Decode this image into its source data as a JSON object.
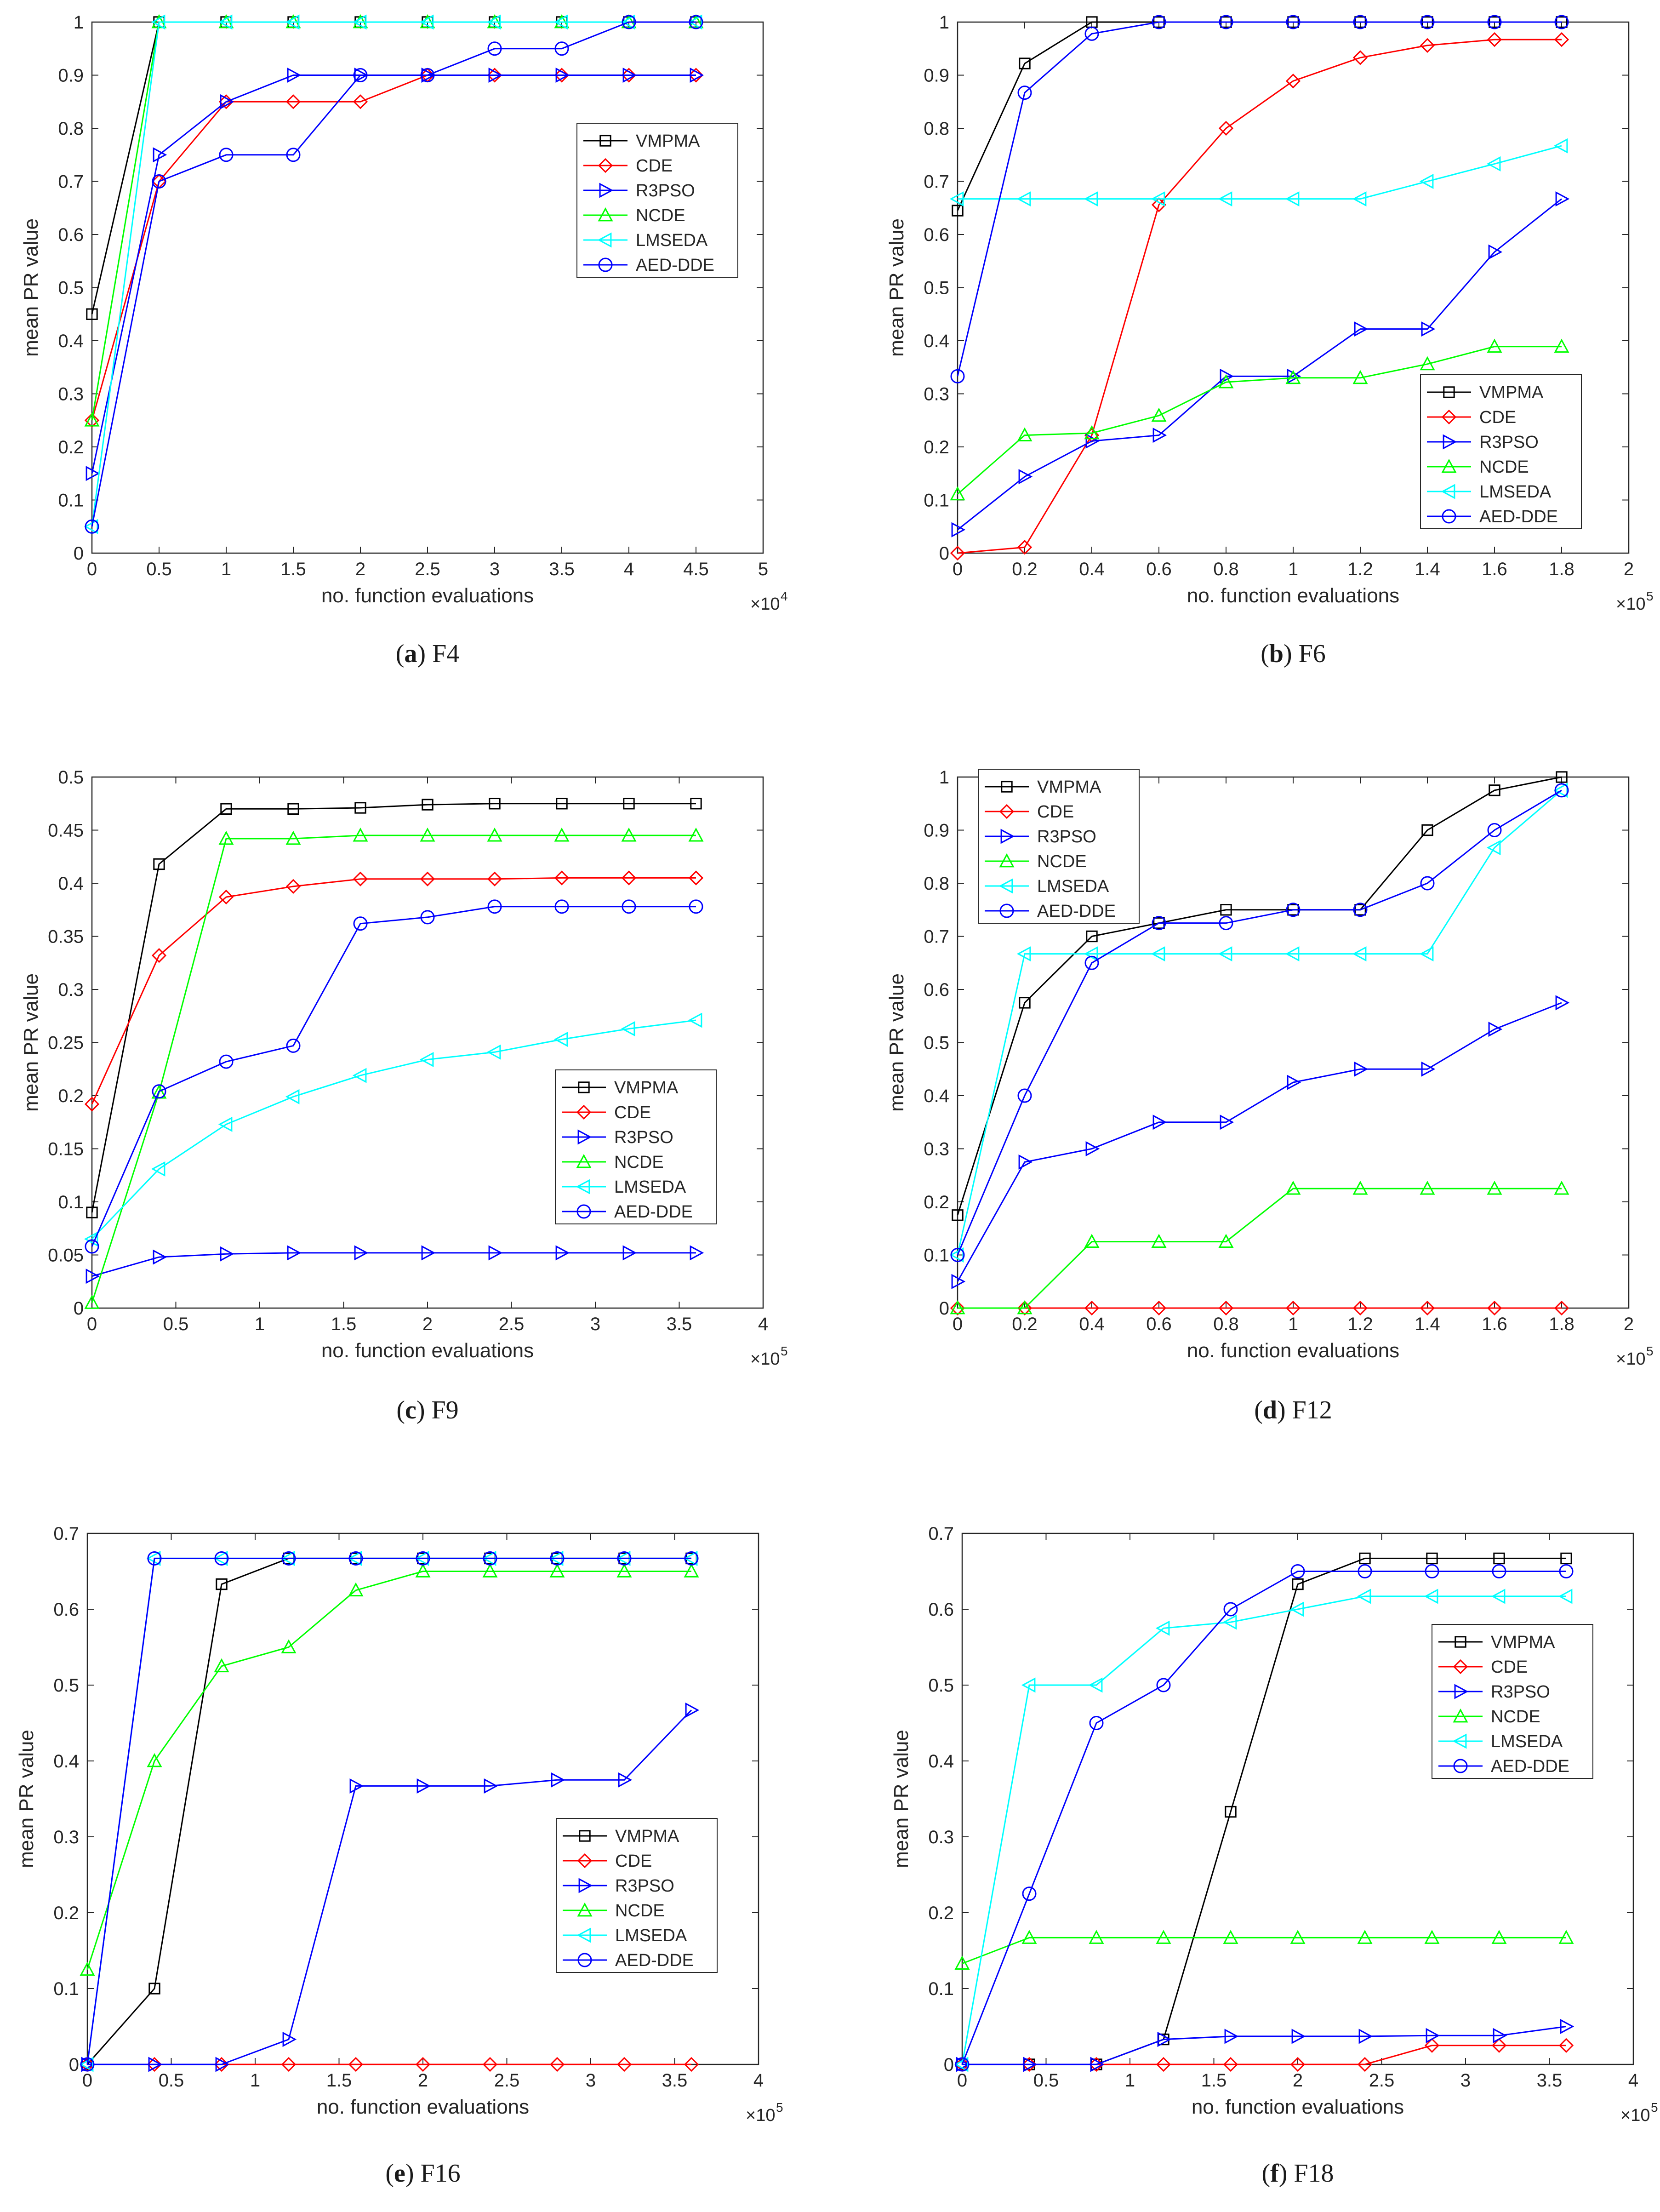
{
  "colors": {
    "VMPMA": "#000000",
    "CDE": "#ff0000",
    "R3PSO": "#0000ff",
    "NCDE": "#00ff00",
    "LMSEDA": "#00ffff",
    "AED-DDE": "#0000ff"
  },
  "markers": {
    "VMPMA": "square",
    "CDE": "diamond",
    "R3PSO": "tri-right",
    "NCDE": "tri-up",
    "LMSEDA": "tri-left",
    "AED-DDE": "circle"
  },
  "chart_data": [
    {
      "id": "a",
      "type": "line",
      "caption_letter": "a",
      "caption_name": "F4",
      "xlabel": "no. function evaluations",
      "ylabel": "mean PR value",
      "exponent_base": "×10",
      "exponent": "4",
      "xlim": [
        0,
        5
      ],
      "ylim": [
        0,
        1
      ],
      "xticks": [
        0,
        0.5,
        1,
        1.5,
        2,
        2.5,
        3,
        3.5,
        4,
        4.5,
        5
      ],
      "xtick_labels": [
        "0",
        "0.5",
        "1",
        "1.5",
        "2",
        "2.5",
        "3",
        "3.5",
        "4",
        "4.5",
        "5"
      ],
      "yticks": [
        0,
        0.1,
        0.2,
        0.3,
        0.4,
        0.5,
        0.6,
        0.7,
        0.8,
        0.9,
        1
      ],
      "ytick_labels": [
        "0",
        "0.1",
        "0.2",
        "0.3",
        "0.4",
        "0.5",
        "0.6",
        "0.7",
        "0.8",
        "0.9",
        "1"
      ],
      "legend_position": "right-middle",
      "x": [
        0,
        0.5,
        1,
        1.5,
        2,
        2.5,
        3,
        3.5,
        4,
        4.5
      ],
      "series": [
        {
          "name": "VMPMA",
          "values": [
            0.45,
            1,
            1,
            1,
            1,
            1,
            1,
            1,
            1,
            1
          ]
        },
        {
          "name": "CDE",
          "values": [
            0.25,
            0.7,
            0.85,
            0.85,
            0.85,
            0.9,
            0.9,
            0.9,
            0.9,
            0.9
          ]
        },
        {
          "name": "R3PSO",
          "values": [
            0.15,
            0.75,
            0.85,
            0.9,
            0.9,
            0.9,
            0.9,
            0.9,
            0.9,
            0.9
          ]
        },
        {
          "name": "NCDE",
          "values": [
            0.25,
            1,
            1,
            1,
            1,
            1,
            1,
            1,
            1,
            1
          ]
        },
        {
          "name": "LMSEDA",
          "values": [
            0.05,
            1,
            1,
            1,
            1,
            1,
            1,
            1,
            1,
            1
          ]
        },
        {
          "name": "AED-DDE",
          "values": [
            0.05,
            0.7,
            0.75,
            0.75,
            0.9,
            0.9,
            0.95,
            0.95,
            1,
            1
          ]
        }
      ]
    },
    {
      "id": "b",
      "type": "line",
      "caption_letter": "b",
      "caption_name": "F6",
      "xlabel": "no. function evaluations",
      "ylabel": "mean PR value",
      "exponent_base": "×10",
      "exponent": "5",
      "xlim": [
        0,
        2
      ],
      "ylim": [
        0,
        1
      ],
      "xticks": [
        0,
        0.2,
        0.4,
        0.6,
        0.8,
        1,
        1.2,
        1.4,
        1.6,
        1.8,
        2
      ],
      "xtick_labels": [
        "0",
        "0.2",
        "0.4",
        "0.6",
        "0.8",
        "1",
        "1.2",
        "1.4",
        "1.6",
        "1.8",
        "2"
      ],
      "yticks": [
        0,
        0.1,
        0.2,
        0.3,
        0.4,
        0.5,
        0.6,
        0.7,
        0.8,
        0.9,
        1
      ],
      "ytick_labels": [
        "0",
        "0.1",
        "0.2",
        "0.3",
        "0.4",
        "0.5",
        "0.6",
        "0.7",
        "0.8",
        "0.9",
        "1"
      ],
      "legend_position": "bottom-right",
      "x": [
        0,
        0.2,
        0.4,
        0.6,
        0.8,
        1,
        1.2,
        1.4,
        1.6,
        1.8
      ],
      "series": [
        {
          "name": "VMPMA",
          "values": [
            0.645,
            0.922,
            1,
            1,
            1,
            1,
            1,
            1,
            1,
            1
          ]
        },
        {
          "name": "CDE",
          "values": [
            0,
            0.011,
            0.222,
            0.656,
            0.8,
            0.889,
            0.933,
            0.956,
            0.967,
            0.967
          ]
        },
        {
          "name": "R3PSO",
          "values": [
            0.044,
            0.144,
            0.211,
            0.222,
            0.333,
            0.333,
            0.422,
            0.422,
            0.567,
            0.667
          ]
        },
        {
          "name": "NCDE",
          "values": [
            0.111,
            0.222,
            0.226,
            0.259,
            0.322,
            0.33,
            0.33,
            0.356,
            0.389,
            0.389
          ]
        },
        {
          "name": "LMSEDA",
          "values": [
            0.667,
            0.667,
            0.667,
            0.667,
            0.667,
            0.667,
            0.667,
            0.7,
            0.733,
            0.767
          ]
        },
        {
          "name": "AED-DDE",
          "values": [
            0.333,
            0.867,
            0.978,
            1,
            1,
            1,
            1,
            1,
            1,
            1
          ]
        }
      ]
    },
    {
      "id": "c",
      "type": "line",
      "caption_letter": "c",
      "caption_name": "F9",
      "xlabel": "no. function evaluations",
      "ylabel": "mean PR value",
      "exponent_base": "×10",
      "exponent": "5",
      "xlim": [
        0,
        4
      ],
      "ylim": [
        0,
        0.5
      ],
      "xticks": [
        0,
        0.5,
        1,
        1.5,
        2,
        2.5,
        3,
        3.5,
        4
      ],
      "xtick_labels": [
        "0",
        "0.5",
        "1",
        "1.5",
        "2",
        "2.5",
        "3",
        "3.5",
        "4"
      ],
      "yticks": [
        0,
        0.05,
        0.1,
        0.15,
        0.2,
        0.25,
        0.3,
        0.35,
        0.4,
        0.45,
        0.5
      ],
      "ytick_labels": [
        "0",
        "0.05",
        "0.1",
        "0.15",
        "0.2",
        "0.25",
        "0.3",
        "0.35",
        "0.4",
        "0.45",
        "0.5"
      ],
      "legend_position": "right-middle",
      "x": [
        0,
        0.4,
        0.8,
        1.2,
        1.6,
        2.0,
        2.4,
        2.8,
        3.2,
        3.6
      ],
      "series": [
        {
          "name": "VMPMA",
          "values": [
            0.09,
            0.418,
            0.47,
            0.47,
            0.471,
            0.474,
            0.475,
            0.475,
            0.475,
            0.475
          ]
        },
        {
          "name": "CDE",
          "values": [
            0.192,
            0.332,
            0.387,
            0.397,
            0.404,
            0.404,
            0.404,
            0.405,
            0.405,
            0.405
          ]
        },
        {
          "name": "R3PSO",
          "values": [
            0.03,
            0.048,
            0.051,
            0.052,
            0.052,
            0.052,
            0.052,
            0.052,
            0.052,
            0.052
          ]
        },
        {
          "name": "NCDE",
          "values": [
            0.005,
            0.203,
            0.442,
            0.442,
            0.445,
            0.445,
            0.445,
            0.445,
            0.445,
            0.445
          ]
        },
        {
          "name": "LMSEDA",
          "values": [
            0.065,
            0.131,
            0.173,
            0.199,
            0.219,
            0.234,
            0.241,
            0.253,
            0.263,
            0.271
          ]
        },
        {
          "name": "AED-DDE",
          "values": [
            0.058,
            0.204,
            0.232,
            0.247,
            0.362,
            0.368,
            0.378,
            0.378,
            0.378,
            0.378
          ]
        }
      ]
    },
    {
      "id": "d",
      "type": "line",
      "caption_letter": "d",
      "caption_name": "F12",
      "xlabel": "no. function evaluations",
      "ylabel": "mean PR value",
      "exponent_base": "×10",
      "exponent": "5",
      "xlim": [
        0,
        2
      ],
      "ylim": [
        0,
        1
      ],
      "xticks": [
        0,
        0.2,
        0.4,
        0.6,
        0.8,
        1,
        1.2,
        1.4,
        1.6,
        1.8,
        2
      ],
      "xtick_labels": [
        "0",
        "0.2",
        "0.4",
        "0.6",
        "0.8",
        "1",
        "1.2",
        "1.4",
        "1.6",
        "1.8",
        "2"
      ],
      "yticks": [
        0,
        0.1,
        0.2,
        0.3,
        0.4,
        0.5,
        0.6,
        0.7,
        0.8,
        0.9,
        1
      ],
      "ytick_labels": [
        "0",
        "0.1",
        "0.2",
        "0.3",
        "0.4",
        "0.5",
        "0.6",
        "0.7",
        "0.8",
        "0.9",
        "1"
      ],
      "legend_position": "top-left",
      "x": [
        0,
        0.2,
        0.4,
        0.6,
        0.8,
        1,
        1.2,
        1.4,
        1.6,
        1.8
      ],
      "series": [
        {
          "name": "VMPMA",
          "values": [
            0.175,
            0.575,
            0.7,
            0.725,
            0.75,
            0.75,
            0.75,
            0.9,
            0.975,
            1
          ]
        },
        {
          "name": "CDE",
          "values": [
            0,
            0,
            0,
            0,
            0,
            0,
            0,
            0,
            0,
            0
          ]
        },
        {
          "name": "R3PSO",
          "values": [
            0.05,
            0.275,
            0.3,
            0.35,
            0.35,
            0.425,
            0.45,
            0.45,
            0.525,
            0.575
          ]
        },
        {
          "name": "NCDE",
          "values": [
            0,
            0,
            0.125,
            0.125,
            0.125,
            0.225,
            0.225,
            0.225,
            0.225,
            0.225
          ]
        },
        {
          "name": "LMSEDA",
          "values": [
            0.1,
            0.667,
            0.667,
            0.667,
            0.667,
            0.667,
            0.667,
            0.667,
            0.867,
            0.975
          ]
        },
        {
          "name": "AED-DDE",
          "values": [
            0.1,
            0.4,
            0.65,
            0.725,
            0.725,
            0.75,
            0.75,
            0.8,
            0.9,
            0.975
          ]
        }
      ]
    },
    {
      "id": "e",
      "type": "line",
      "caption_letter": "e",
      "caption_name": "F16",
      "xlabel": "no. function evaluations",
      "ylabel": "mean PR value",
      "exponent_base": "×10",
      "exponent": "5",
      "xlim": [
        0,
        4
      ],
      "ylim": [
        0,
        0.7
      ],
      "xticks": [
        0,
        0.5,
        1,
        1.5,
        2,
        2.5,
        3,
        3.5,
        4
      ],
      "xtick_labels": [
        "0",
        "0.5",
        "1",
        "1.5",
        "2",
        "2.5",
        "3",
        "3.5",
        "4"
      ],
      "yticks": [
        0,
        0.1,
        0.2,
        0.3,
        0.4,
        0.5,
        0.6,
        0.7
      ],
      "ytick_labels": [
        "0",
        "0.1",
        "0.2",
        "0.3",
        "0.4",
        "0.5",
        "0.6",
        "0.7"
      ],
      "legend_position": "right-middle",
      "x": [
        0,
        0.4,
        0.8,
        1.2,
        1.6,
        2.0,
        2.4,
        2.8,
        3.2,
        3.6
      ],
      "series": [
        {
          "name": "VMPMA",
          "values": [
            0,
            0.1,
            0.633,
            0.667,
            0.667,
            0.667,
            0.667,
            0.667,
            0.667,
            0.667
          ]
        },
        {
          "name": "CDE",
          "values": [
            0,
            0,
            0,
            0,
            0,
            0,
            0,
            0,
            0,
            0
          ]
        },
        {
          "name": "R3PSO",
          "values": [
            0,
            0,
            0,
            0.033,
            0.367,
            0.367,
            0.367,
            0.375,
            0.375,
            0.467
          ]
        },
        {
          "name": "NCDE",
          "values": [
            0.125,
            0.4,
            0.525,
            0.55,
            0.625,
            0.65,
            0.65,
            0.65,
            0.65,
            0.65
          ]
        },
        {
          "name": "LMSEDA",
          "values": [
            0,
            0.667,
            0.667,
            0.667,
            0.667,
            0.667,
            0.667,
            0.667,
            0.667,
            0.667
          ]
        },
        {
          "name": "AED-DDE",
          "values": [
            0,
            0.667,
            0.667,
            0.667,
            0.667,
            0.667,
            0.667,
            0.667,
            0.667,
            0.667
          ]
        }
      ]
    },
    {
      "id": "f",
      "type": "line",
      "caption_letter": "f",
      "caption_name": "F18",
      "xlabel": "no. function evaluations",
      "ylabel": "mean PR value",
      "exponent_base": "×10",
      "exponent": "5",
      "xlim": [
        0,
        4
      ],
      "ylim": [
        0,
        0.7
      ],
      "xticks": [
        0,
        0.5,
        1,
        1.5,
        2,
        2.5,
        3,
        3.5,
        4
      ],
      "xtick_labels": [
        "0",
        "0.5",
        "1",
        "1.5",
        "2",
        "2.5",
        "3",
        "3.5",
        "4"
      ],
      "yticks": [
        0,
        0.1,
        0.2,
        0.3,
        0.4,
        0.5,
        0.6,
        0.7
      ],
      "ytick_labels": [
        "0",
        "0.1",
        "0.2",
        "0.3",
        "0.4",
        "0.5",
        "0.6",
        "0.7"
      ],
      "legend_position": "top-right",
      "x": [
        0,
        0.4,
        0.8,
        1.2,
        1.6,
        2.0,
        2.4,
        2.8,
        3.2,
        3.6
      ],
      "series": [
        {
          "name": "VMPMA",
          "values": [
            0,
            0,
            0,
            0.033,
            0.333,
            0.633,
            0.667,
            0.667,
            0.667,
            0.667
          ]
        },
        {
          "name": "CDE",
          "values": [
            0,
            0,
            0,
            0,
            0,
            0,
            0,
            0.025,
            0.025,
            0.025
          ]
        },
        {
          "name": "R3PSO",
          "values": [
            0,
            0,
            0,
            0.033,
            0.037,
            0.037,
            0.037,
            0.038,
            0.038,
            0.05
          ]
        },
        {
          "name": "NCDE",
          "values": [
            0.133,
            0.167,
            0.167,
            0.167,
            0.167,
            0.167,
            0.167,
            0.167,
            0.167,
            0.167
          ]
        },
        {
          "name": "LMSEDA",
          "values": [
            0,
            0.5,
            0.5,
            0.575,
            0.583,
            0.6,
            0.617,
            0.617,
            0.617,
            0.617
          ]
        },
        {
          "name": "AED-DDE",
          "values": [
            0,
            0.225,
            0.45,
            0.5,
            0.6,
            0.65,
            0.65,
            0.65,
            0.65,
            0.65
          ]
        }
      ]
    }
  ]
}
